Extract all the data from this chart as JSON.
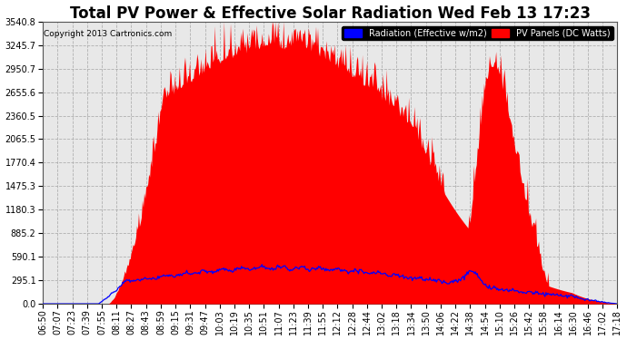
{
  "title": "Total PV Power & Effective Solar Radiation Wed Feb 13 17:23",
  "copyright": "Copyright 2013 Cartronics.com",
  "legend_radiation": "Radiation (Effective w/m2)",
  "legend_pv": "PV Panels (DC Watts)",
  "yticks": [
    0.0,
    295.1,
    590.1,
    885.2,
    1180.3,
    1475.3,
    1770.4,
    2065.5,
    2360.5,
    2655.6,
    2950.7,
    3245.7,
    3540.8
  ],
  "ymax": 3540.8,
  "ymin": 0.0,
  "bg_color": "#ffffff",
  "plot_bg_color": "#e8e8e8",
  "grid_color": "#aaaaaa",
  "radiation_color": "#0000ff",
  "pv_color": "#ff0000",
  "title_fontsize": 12,
  "xtick_labels": [
    "06:50",
    "07:07",
    "07:23",
    "07:39",
    "07:55",
    "08:11",
    "08:27",
    "08:43",
    "08:59",
    "09:15",
    "09:31",
    "09:47",
    "10:03",
    "10:19",
    "10:35",
    "10:51",
    "11:07",
    "11:23",
    "11:39",
    "11:55",
    "12:12",
    "12:28",
    "12:44",
    "13:02",
    "13:18",
    "13:34",
    "13:50",
    "14:06",
    "14:22",
    "14:38",
    "14:54",
    "15:10",
    "15:26",
    "15:42",
    "15:58",
    "16:14",
    "16:30",
    "16:46",
    "17:02",
    "17:18"
  ]
}
